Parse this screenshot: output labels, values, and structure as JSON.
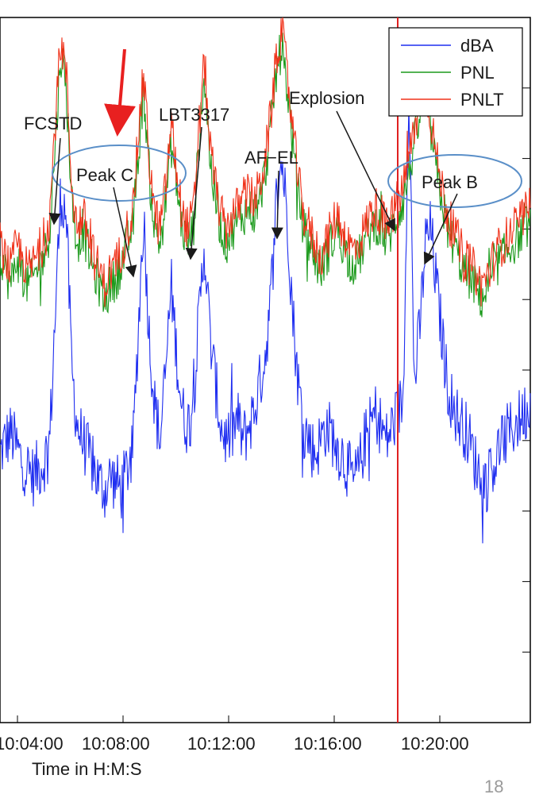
{
  "chart_data": {
    "type": "line",
    "xlabel": "Time in H:M:S",
    "x_tick_labels": [
      "10:04:00",
      "10:08:00",
      "10:12:00",
      "10:16:00",
      "10:20:00"
    ],
    "x_range": [
      "10:03:50",
      "10:22:30"
    ],
    "y_range": [
      0,
      100
    ],
    "legend": {
      "placement": "top-right",
      "entries": [
        "dBA",
        "PNL",
        "PNLT"
      ]
    },
    "colors": {
      "dBA": "#1f2ef0",
      "PNL": "#1c9a1c",
      "PNLT": "#f0321a",
      "explosion_line": "#e02020",
      "highlight_arrow": "#e82020",
      "circle": "#5a8fc8"
    },
    "series": [
      {
        "name": "dBA",
        "base": [
          38,
          40,
          41,
          39,
          37,
          36,
          35,
          36,
          37,
          40,
          58,
          75,
          72,
          50,
          42,
          40,
          38,
          36,
          34,
          33,
          35,
          34,
          33,
          36,
          38,
          55,
          72,
          55,
          45,
          40,
          50,
          62,
          52,
          44,
          42,
          46,
          57,
          68,
          55,
          48,
          42,
          40,
          41,
          43,
          40,
          42,
          44,
          48,
          52,
          60,
          74,
          80,
          72,
          58,
          48,
          42,
          40,
          38,
          40,
          42,
          41,
          39,
          38,
          36,
          34,
          36,
          40,
          42,
          44,
          42,
          40,
          42,
          44,
          46,
          92,
          48,
          56,
          68,
          70,
          62,
          55,
          48,
          45,
          43,
          42,
          40,
          37,
          35,
          34,
          36,
          38,
          40,
          41,
          42,
          43,
          44,
          45
        ]
      },
      {
        "name": "PNL",
        "base": [
          67,
          64,
          62,
          66,
          64,
          62,
          63,
          65,
          66,
          70,
          82,
          95,
          90,
          74,
          68,
          70,
          67,
          64,
          62,
          60,
          62,
          63,
          65,
          68,
          70,
          80,
          90,
          78,
          70,
          68,
          74,
          82,
          76,
          70,
          68,
          70,
          82,
          92,
          80,
          74,
          70,
          68,
          70,
          71,
          72,
          73,
          72,
          74,
          78,
          84,
          92,
          96,
          90,
          82,
          75,
          70,
          68,
          66,
          64,
          66,
          68,
          70,
          68,
          66,
          65,
          66,
          68,
          70,
          71,
          70,
          68,
          70,
          72,
          74,
          78,
          82,
          86,
          88,
          84,
          78,
          74,
          70,
          68,
          66,
          64,
          63,
          62,
          60,
          61,
          63,
          65,
          66,
          67,
          68,
          69,
          70,
          71
        ]
      },
      {
        "name": "PNLT",
        "base": [
          68,
          66,
          64,
          68,
          66,
          64,
          65,
          67,
          68,
          72,
          85,
          97,
          92,
          76,
          70,
          72,
          69,
          66,
          64,
          62,
          64,
          65,
          67,
          70,
          72,
          83,
          92,
          80,
          72,
          70,
          76,
          85,
          78,
          72,
          70,
          72,
          84,
          94,
          82,
          76,
          72,
          70,
          72,
          73,
          74,
          75,
          74,
          76,
          80,
          86,
          94,
          98,
          92,
          84,
          77,
          72,
          70,
          68,
          66,
          68,
          70,
          72,
          70,
          68,
          67,
          68,
          70,
          72,
          73,
          72,
          70,
          72,
          74,
          76,
          80,
          84,
          88,
          90,
          86,
          80,
          76,
          72,
          70,
          68,
          66,
          65,
          64,
          62,
          63,
          65,
          67,
          68,
          69,
          70,
          71,
          72,
          73
        ]
      }
    ],
    "annotations": [
      {
        "text": "FCSTD",
        "target_time": "10:05:10"
      },
      {
        "text": "Peak C",
        "target_time": "10:08:30",
        "circled": true,
        "highlighted": true
      },
      {
        "text": "LBT3317",
        "target_time": "10:10:30"
      },
      {
        "text": "AF−EL",
        "target_time": "10:13:40"
      },
      {
        "text": "Explosion",
        "target_time": "10:18:25"
      },
      {
        "text": "Peak B",
        "target_time": "10:19:00",
        "circled": true
      }
    ],
    "explosion_time": "10:18:30"
  },
  "legend_labels": {
    "dba": "dBA",
    "pnl": "PNL",
    "pnlt": "PNLT"
  },
  "xlabel": "Time in H:M:S",
  "page_number": "18"
}
